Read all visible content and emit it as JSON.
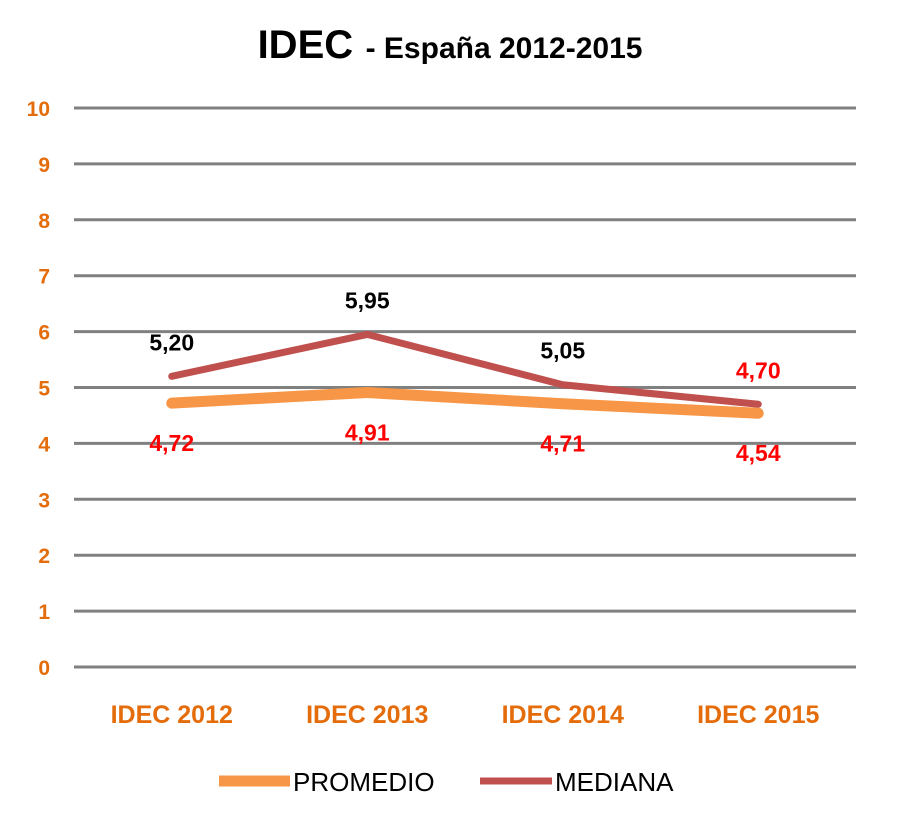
{
  "chart_data": {
    "type": "line",
    "title": "IDEC",
    "subtitle": "- España 2012-2015",
    "categories": [
      "IDEC 2012",
      "IDEC 2013",
      "IDEC 2014",
      "IDEC 2015"
    ],
    "ylim": [
      0,
      10
    ],
    "yticks": [
      0,
      1,
      2,
      3,
      4,
      5,
      6,
      7,
      8,
      9,
      10
    ],
    "grid": true,
    "legend_position": "bottom",
    "series": [
      {
        "name": "PROMEDIO",
        "values": [
          4.72,
          4.91,
          4.71,
          4.54
        ],
        "labels": [
          "4,72",
          "4,91",
          "4,71",
          "4,54"
        ],
        "color": "#F79646",
        "label_color": "#FF0000",
        "label_side": [
          "below",
          "below",
          "below",
          "below"
        ]
      },
      {
        "name": "MEDIANA",
        "values": [
          5.2,
          5.95,
          5.05,
          4.7
        ],
        "labels": [
          "5,20",
          "5,95",
          "5,05",
          "4,70"
        ],
        "color": "#C0504D",
        "label_color": [
          "#000000",
          "#000000",
          "#000000",
          "#FF0000"
        ],
        "label_side": [
          "above",
          "above",
          "above",
          "above"
        ]
      }
    ],
    "colors": {
      "axis_tick": "#E46C0A",
      "grid": "#808080"
    }
  }
}
